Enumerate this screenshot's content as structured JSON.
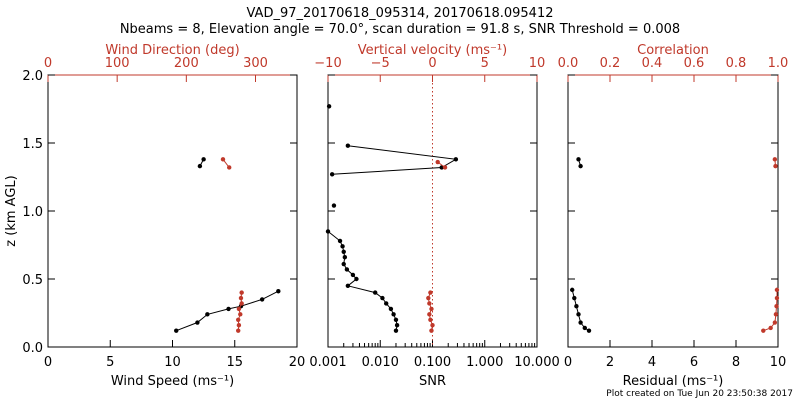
{
  "title_line1": "VAD_97_20170618_095314, 20170618.095412",
  "title_line2": "Nbeams = 8, Elevation angle = 70.0°, scan duration = 91.8 s, SNR Threshold = 0.008",
  "footer": "Plot created on Tue Jun 20 23:50:38 2017",
  "colors": {
    "primary": "#000000",
    "secondary": "#c0392b"
  },
  "chart_data": [
    {
      "type": "line",
      "ylabel": "z (km AGL)",
      "ylim": [
        0,
        2
      ],
      "yticks": [
        "0.0",
        "0.5",
        "1.0",
        "1.5",
        "2.0"
      ],
      "bottom_axis": {
        "label": "Wind Speed (ms⁻¹)",
        "range": [
          0,
          20
        ],
        "ticks": [
          "0",
          "5",
          "10",
          "15",
          "20"
        ]
      },
      "top_axis": {
        "label": "Wind Direction (deg)",
        "range": [
          0,
          360
        ],
        "ticks": [
          "0",
          "100",
          "200",
          "300"
        ]
      },
      "series": [
        {
          "axis": "bottom",
          "points": [
            [
              10.3,
              0.12
            ],
            [
              12.0,
              0.18
            ],
            [
              12.8,
              0.24
            ],
            [
              14.5,
              0.28
            ],
            [
              15.5,
              0.3
            ],
            [
              17.2,
              0.35
            ],
            [
              18.5,
              0.41
            ]
          ],
          "segments": [
            [
              0,
              7
            ]
          ]
        },
        {
          "axis": "bottom",
          "points": [
            [
              12.2,
              1.33
            ],
            [
              12.5,
              1.38
            ]
          ],
          "segments": [
            [
              0,
              2
            ]
          ]
        },
        {
          "axis": "top",
          "points": [
            [
              275,
              0.12
            ],
            [
              276,
              0.16
            ],
            [
              275,
              0.2
            ],
            [
              278,
              0.24
            ],
            [
              276,
              0.28
            ],
            [
              280,
              0.32
            ],
            [
              279,
              0.36
            ],
            [
              280,
              0.4
            ]
          ],
          "segments": [
            [
              0,
              8
            ]
          ]
        },
        {
          "axis": "top",
          "points": [
            [
              253,
              1.38
            ],
            [
              262,
              1.32
            ]
          ],
          "segments": [
            [
              0,
              2
            ]
          ]
        }
      ]
    },
    {
      "type": "line",
      "bottom_axis": {
        "label": "SNR",
        "scale": "log",
        "range": [
          0.001,
          10
        ],
        "ticks": [
          "0.001",
          "0.010",
          "0.100",
          "1.000",
          "10.000"
        ]
      },
      "top_axis": {
        "label": "Vertical velocity (ms⁻¹)",
        "range": [
          -10,
          10
        ],
        "ticks": [
          "−10",
          "−5",
          "0",
          "5",
          "10"
        ]
      },
      "reference_line": {
        "axis": "top",
        "value": 0,
        "style": "dotted"
      },
      "series": [
        {
          "axis": "bottom",
          "points": [
            [
              0.00105,
              1.77
            ]
          ],
          "segments": []
        },
        {
          "axis": "bottom",
          "points": [
            [
              0.0013,
              1.04
            ]
          ],
          "segments": []
        },
        {
          "axis": "bottom",
          "points": [
            [
              0.0024,
              1.48
            ],
            [
              0.28,
              1.38
            ],
            [
              0.15,
              1.32
            ],
            [
              0.0012,
              1.27
            ]
          ],
          "segments": [
            [
              0,
              4
            ]
          ]
        },
        {
          "axis": "bottom",
          "points": [
            [
              0.001,
              0.85
            ],
            [
              0.0017,
              0.78
            ],
            [
              0.0019,
              0.74
            ],
            [
              0.002,
              0.7
            ],
            [
              0.0021,
              0.66
            ],
            [
              0.002,
              0.61
            ],
            [
              0.0023,
              0.57
            ],
            [
              0.003,
              0.53
            ],
            [
              0.0035,
              0.5
            ],
            [
              0.0024,
              0.45
            ],
            [
              0.008,
              0.4
            ],
            [
              0.011,
              0.36
            ],
            [
              0.013,
              0.32
            ],
            [
              0.016,
              0.28
            ],
            [
              0.018,
              0.24
            ],
            [
              0.02,
              0.2
            ],
            [
              0.021,
              0.16
            ],
            [
              0.02,
              0.12
            ]
          ],
          "segments": [
            [
              0,
              18
            ]
          ]
        },
        {
          "axis": "top",
          "points": [
            [
              0.5,
              1.36
            ],
            [
              1.2,
              1.32
            ]
          ],
          "segments": [
            [
              0,
              2
            ]
          ]
        },
        {
          "axis": "top",
          "points": [
            [
              -0.2,
              0.4
            ],
            [
              -0.4,
              0.36
            ],
            [
              -0.3,
              0.32
            ],
            [
              -0.1,
              0.28
            ],
            [
              -0.3,
              0.24
            ],
            [
              -0.2,
              0.2
            ],
            [
              0,
              0.16
            ],
            [
              -0.1,
              0.12
            ]
          ],
          "segments": [
            [
              0,
              8
            ]
          ]
        }
      ]
    },
    {
      "type": "line",
      "bottom_axis": {
        "label": "Residual (ms⁻¹)",
        "range": [
          0,
          10
        ],
        "ticks": [
          "0",
          "2",
          "4",
          "6",
          "8",
          "10"
        ]
      },
      "top_axis": {
        "label": "Correlation",
        "range": [
          0,
          1
        ],
        "ticks": [
          "0.0",
          "0.2",
          "0.4",
          "0.6",
          "0.8",
          "1.0"
        ]
      },
      "series": [
        {
          "axis": "bottom",
          "points": [
            [
              0.2,
              0.42
            ],
            [
              0.3,
              0.36
            ],
            [
              0.4,
              0.3
            ],
            [
              0.5,
              0.24
            ],
            [
              0.6,
              0.18
            ],
            [
              0.8,
              0.14
            ],
            [
              1.0,
              0.12
            ]
          ],
          "segments": [
            [
              0,
              7
            ]
          ]
        },
        {
          "axis": "bottom",
          "points": [
            [
              0.5,
              1.38
            ],
            [
              0.6,
              1.33
            ]
          ],
          "segments": [
            [
              0,
              2
            ]
          ]
        },
        {
          "axis": "top",
          "points": [
            [
              0.995,
              0.42
            ],
            [
              0.995,
              0.36
            ],
            [
              0.993,
              0.3
            ],
            [
              0.99,
              0.24
            ],
            [
              0.985,
              0.18
            ],
            [
              0.965,
              0.14
            ],
            [
              0.93,
              0.12
            ]
          ],
          "segments": [
            [
              0,
              7
            ]
          ]
        },
        {
          "axis": "top",
          "points": [
            [
              0.985,
              1.38
            ],
            [
              0.988,
              1.33
            ]
          ],
          "segments": [
            [
              0,
              2
            ]
          ]
        }
      ]
    }
  ]
}
